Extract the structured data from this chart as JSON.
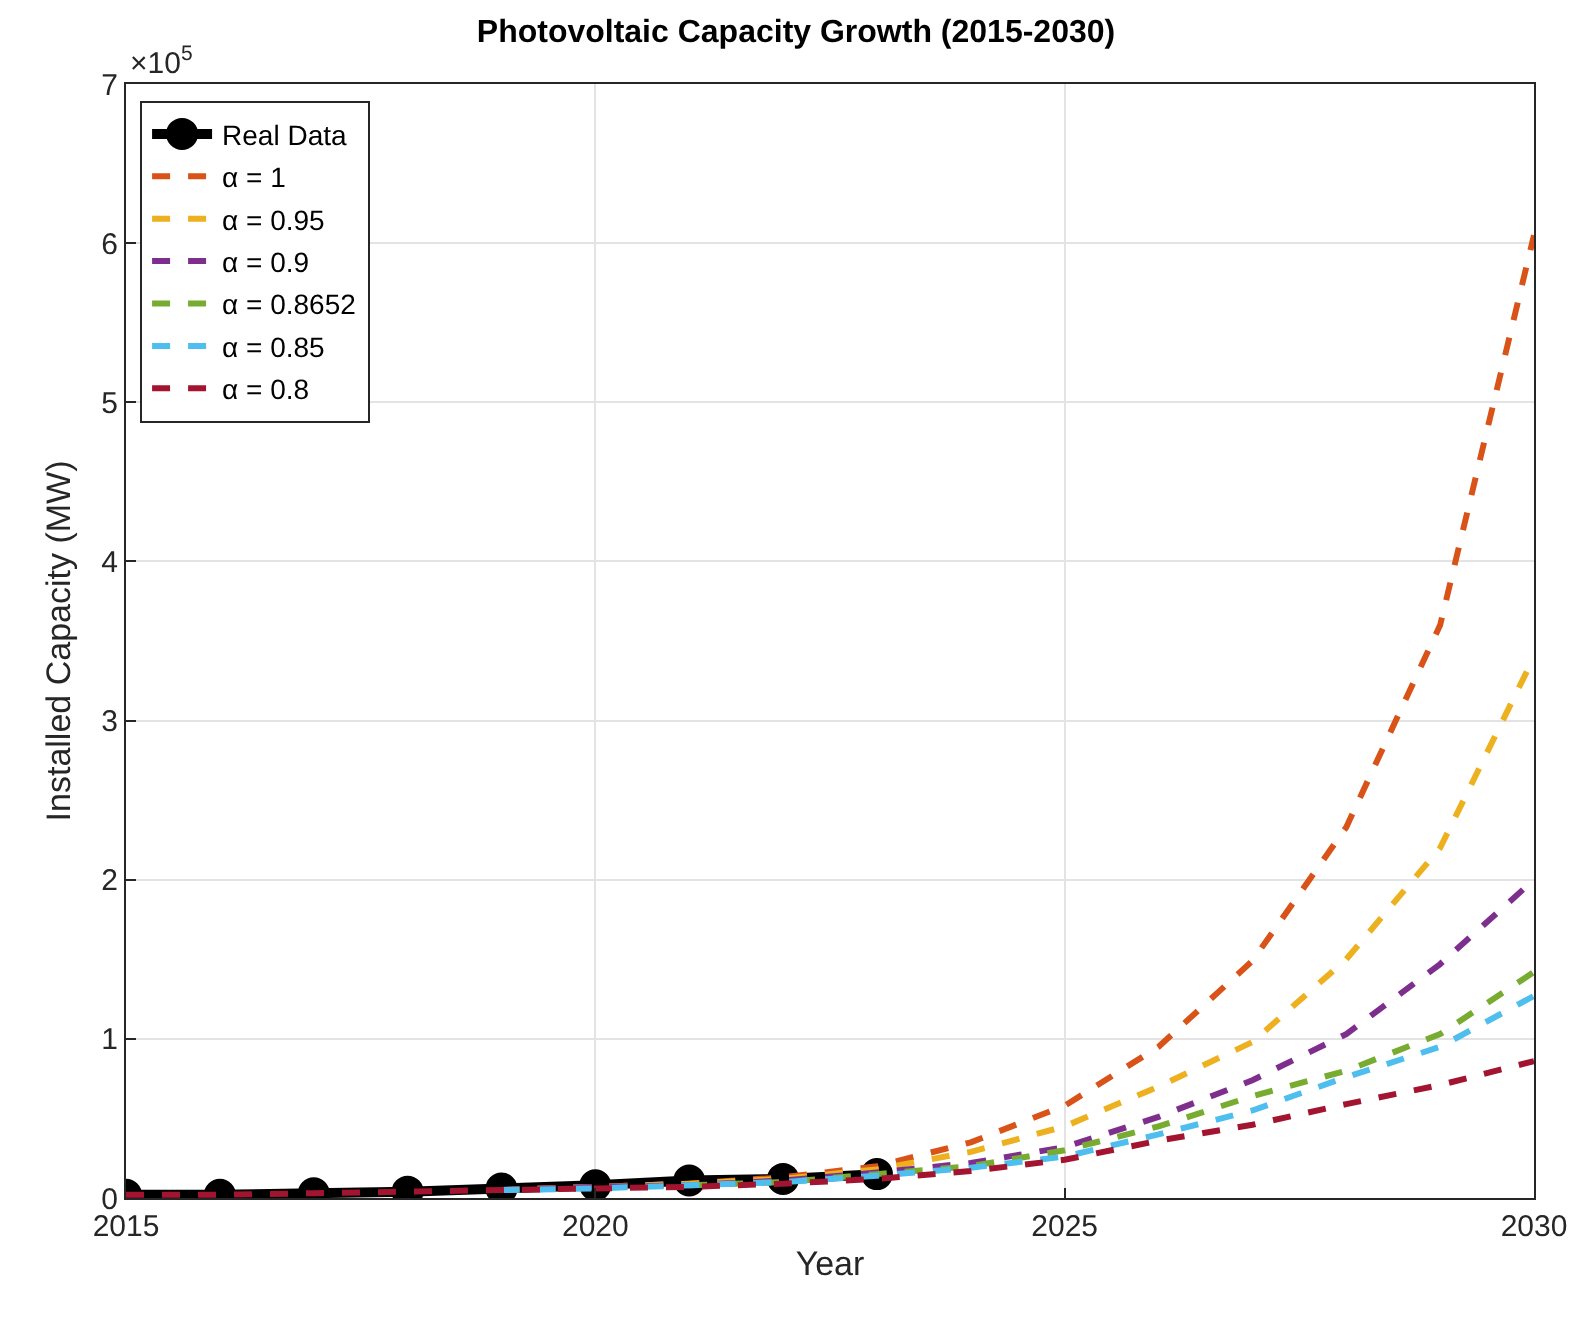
{
  "chart_data": {
    "type": "line",
    "title": "Photovoltaic Capacity Growth (2015-2030)",
    "xlabel": "Year",
    "ylabel": "Installed Capacity (MW)",
    "annotations": [
      "×10$^{5}$"
    ],
    "xlim": [
      2015,
      2030
    ],
    "xticks": [
      2015,
      2020,
      2025,
      2030
    ],
    "ylim": [
      0,
      7
    ],
    "yticks": [
      0,
      1,
      2,
      3,
      4,
      5,
      6,
      7
    ],
    "grid": true,
    "legend": "top left",
    "series": [
      {
        "name": "Real Data",
        "color": "#000000",
        "marker": "circle",
        "line_style": "solid",
        "x": [
          2015,
          2016,
          2017,
          2018,
          2019,
          2020,
          2021,
          2022,
          2023
        ],
        "values": [
          0.02,
          0.02,
          0.03,
          0.04,
          0.06,
          0.08,
          0.11,
          0.12,
          0.15
        ]
      },
      {
        "name": "α = 1",
        "color": "#d95319",
        "marker": "none",
        "line_style": "dashed",
        "x": [
          2019,
          2020,
          2021,
          2022,
          2023,
          2024,
          2025,
          2026,
          2027,
          2028,
          2029,
          2030
        ],
        "values": [
          0.05,
          0.07,
          0.09,
          0.13,
          0.2,
          0.35,
          0.58,
          0.95,
          1.49,
          2.33,
          3.6,
          6.05
        ]
      },
      {
        "name": "α = 0.95",
        "color": "#edb120",
        "marker": "none",
        "line_style": "dashed",
        "x": [
          2019,
          2020,
          2021,
          2022,
          2023,
          2024,
          2025,
          2026,
          2027,
          2028,
          2029,
          2030
        ],
        "values": [
          0.05,
          0.07,
          0.09,
          0.12,
          0.18,
          0.29,
          0.45,
          0.7,
          0.98,
          1.5,
          2.2,
          3.4
        ]
      },
      {
        "name": "α = 0.9",
        "color": "#7e2f8e",
        "marker": "none",
        "line_style": "dashed",
        "x": [
          2019,
          2020,
          2021,
          2022,
          2023,
          2024,
          2025,
          2026,
          2027,
          2028,
          2029,
          2030
        ],
        "values": [
          0.05,
          0.07,
          0.08,
          0.11,
          0.16,
          0.22,
          0.32,
          0.51,
          0.74,
          1.03,
          1.47,
          2.0
        ]
      },
      {
        "name": "α = 0.8652",
        "color": "#77ac30",
        "marker": "none",
        "line_style": "dashed",
        "x": [
          2021,
          2022,
          2023,
          2024,
          2025,
          2026,
          2027,
          2028,
          2029,
          2030
        ],
        "values": [
          0.08,
          0.1,
          0.15,
          0.2,
          0.3,
          0.45,
          0.64,
          0.8,
          1.03,
          1.42
        ]
      },
      {
        "name": "α = 0.85",
        "color": "#4dbeee",
        "marker": "none",
        "line_style": "dashed",
        "x": [
          2019,
          2020,
          2021,
          2022,
          2023,
          2024,
          2025,
          2026,
          2027,
          2028,
          2029,
          2030
        ],
        "values": [
          0.05,
          0.06,
          0.08,
          0.1,
          0.14,
          0.19,
          0.26,
          0.4,
          0.55,
          0.76,
          0.95,
          1.27
        ]
      },
      {
        "name": "α = 0.8",
        "color": "#a2142f",
        "marker": "none",
        "line_style": "dashed",
        "x": [
          2015,
          2016,
          2017,
          2018,
          2019,
          2020,
          2021,
          2022,
          2023,
          2024,
          2025,
          2026,
          2027,
          2028,
          2029,
          2030
        ],
        "values": [
          0.02,
          0.02,
          0.03,
          0.04,
          0.05,
          0.06,
          0.07,
          0.09,
          0.12,
          0.17,
          0.24,
          0.36,
          0.46,
          0.59,
          0.71,
          0.86
        ]
      }
    ]
  }
}
